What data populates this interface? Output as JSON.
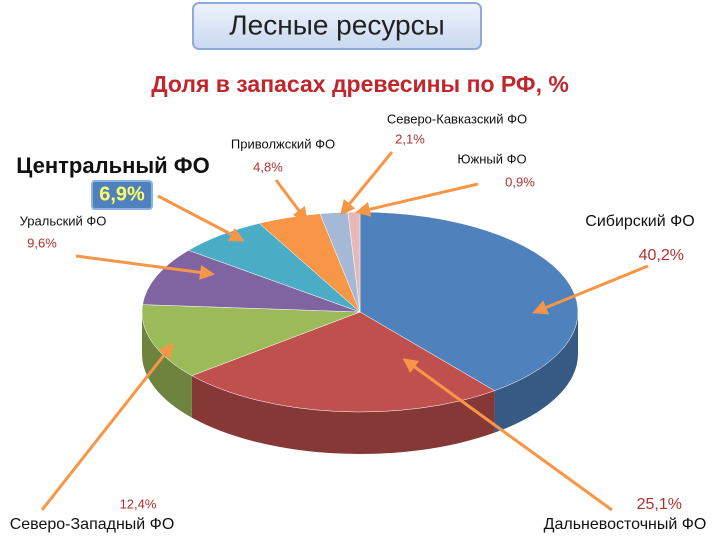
{
  "chart_data": {
    "type": "pie",
    "title": "Лесные ресурсы",
    "subtitle": "Доля в запасах древесины по РФ, %",
    "categories": [
      "Сибирский ФО",
      "Дальневосточный ФО",
      "Северо-Западный ФО",
      "Уральский ФО",
      "Центральный ФО",
      "Приволжский ФО",
      "Северо-Кавказский ФО",
      "Южный ФО"
    ],
    "values": [
      40.2,
      25.1,
      12.4,
      9.6,
      6.9,
      4.8,
      2.1,
      0.9
    ],
    "value_labels": [
      "40,2%",
      "25,1%",
      "12,4%",
      "9,6%",
      "6,9%",
      "4,8%",
      "2,1%",
      "0,9%"
    ],
    "colors": [
      "#4f81bd",
      "#c0504d",
      "#9bbb59",
      "#8064a2",
      "#4bacc6",
      "#f79646",
      "#a5b8d6",
      "#e6b9b8"
    ]
  }
}
